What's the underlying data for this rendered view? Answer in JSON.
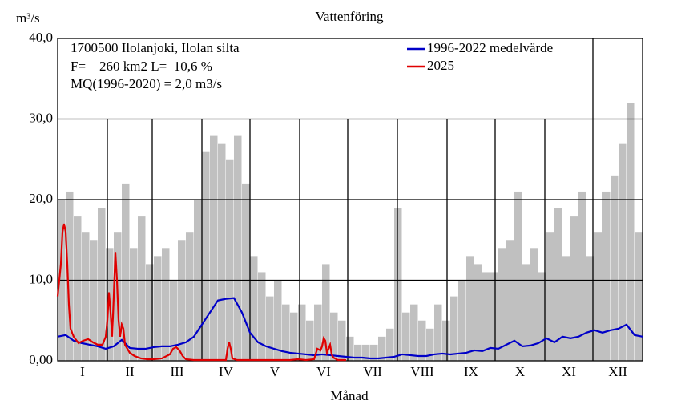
{
  "chart_data": {
    "type": "line",
    "title": "Vattenföring",
    "ylabel": "m³/s",
    "xlabel": "Månad",
    "annotations": [
      "1700500 Ilolanjoki, Ilolan silta",
      "F=    260 km2 L=  10,6 %",
      "MQ(1996-2020) = 2,0 m3/s"
    ],
    "categories": [
      "I",
      "II",
      "III",
      "IV",
      "V",
      "VI",
      "VII",
      "VIII",
      "IX",
      "X",
      "XI",
      "XII"
    ],
    "xlim": [
      0,
      365
    ],
    "xticks": [
      31,
      59,
      90,
      120,
      151,
      181,
      212,
      243,
      273,
      304,
      334
    ],
    "ylim": [
      0,
      40
    ],
    "yticks": [
      {
        "value": 0,
        "label": "0,00"
      },
      {
        "value": 10,
        "label": "10,0"
      },
      {
        "value": 20,
        "label": "20,0"
      },
      {
        "value": 30,
        "label": "30,0"
      },
      {
        "value": 40,
        "label": "40,0"
      }
    ],
    "grid": true,
    "series": [
      {
        "color": "#c0c0c0",
        "kind": "bar",
        "x": [
          0,
          5,
          10,
          15,
          20,
          25,
          30,
          35,
          40,
          45,
          50,
          55,
          60,
          65,
          70,
          75,
          80,
          85,
          90,
          95,
          100,
          105,
          110,
          115,
          120,
          125,
          130,
          135,
          140,
          145,
          150,
          155,
          160,
          165,
          170,
          175,
          180,
          185,
          190,
          195,
          200,
          205,
          210,
          215,
          220,
          225,
          230,
          235,
          240,
          245,
          250,
          255,
          260,
          265,
          270,
          275,
          280,
          285,
          290,
          295,
          300,
          305,
          310,
          315,
          320,
          325,
          330,
          335,
          340,
          345,
          350,
          355,
          360
        ],
        "values": [
          20,
          21,
          18,
          16,
          15,
          19,
          14,
          16,
          22,
          14,
          18,
          12,
          13,
          14,
          10,
          15,
          16,
          20,
          26,
          28,
          27,
          25,
          28,
          22,
          13,
          11,
          8,
          10,
          7,
          6,
          7,
          5,
          7,
          12,
          6,
          5,
          3,
          2,
          2,
          2,
          3,
          4,
          19,
          6,
          7,
          5,
          4,
          7,
          5,
          8,
          10,
          13,
          12,
          11,
          11,
          14,
          15,
          21,
          12,
          14,
          11,
          16,
          19,
          13,
          18,
          21,
          13,
          16,
          21,
          23,
          27,
          32,
          16
        ]
      },
      {
        "name": "1996-2022 medelvärde",
        "color": "#0000c8",
        "x": [
          0,
          5,
          10,
          15,
          20,
          25,
          30,
          35,
          40,
          45,
          50,
          55,
          60,
          65,
          70,
          75,
          80,
          85,
          90,
          95,
          100,
          105,
          110,
          115,
          120,
          125,
          130,
          135,
          140,
          145,
          150,
          155,
          160,
          165,
          170,
          175,
          180,
          185,
          190,
          195,
          200,
          205,
          210,
          215,
          220,
          225,
          230,
          235,
          240,
          245,
          250,
          255,
          260,
          265,
          270,
          275,
          280,
          285,
          290,
          295,
          300,
          305,
          310,
          315,
          320,
          325,
          330,
          335,
          340,
          345,
          350,
          355,
          360,
          365
        ],
        "values": [
          3,
          3.2,
          2.5,
          2.2,
          2,
          1.8,
          1.5,
          1.8,
          2.6,
          1.6,
          1.5,
          1.5,
          1.7,
          1.8,
          1.8,
          2,
          2.3,
          3,
          4.5,
          6,
          7.5,
          7.7,
          7.8,
          6,
          3.5,
          2.3,
          1.8,
          1.5,
          1.2,
          1,
          0.9,
          0.8,
          0.7,
          0.8,
          0.7,
          0.6,
          0.5,
          0.4,
          0.4,
          0.3,
          0.3,
          0.4,
          0.5,
          0.8,
          0.7,
          0.6,
          0.6,
          0.8,
          0.9,
          0.8,
          0.9,
          1,
          1.3,
          1.2,
          1.6,
          1.5,
          2,
          2.5,
          1.8,
          1.9,
          2.2,
          2.8,
          2.3,
          3,
          2.8,
          3,
          3.5,
          3.8,
          3.5,
          3.8,
          4,
          4.5,
          3.2,
          3
        ]
      },
      {
        "name": "2025",
        "color": "#e00000",
        "x": [
          0,
          2,
          3,
          4,
          5,
          6,
          7,
          8,
          10,
          13,
          16,
          19,
          22,
          25,
          28,
          30,
          31,
          32,
          33,
          34,
          35,
          36,
          37,
          38,
          39,
          40,
          41,
          42,
          45,
          48,
          52,
          56,
          60,
          65,
          70,
          72,
          74,
          76,
          78,
          80,
          85,
          95,
          100,
          105,
          106,
          107,
          108,
          109,
          112,
          130,
          145,
          150,
          155,
          160,
          162,
          164,
          165,
          166,
          167,
          168,
          169,
          170,
          171,
          172,
          175,
          180
        ],
        "values": [
          8,
          12,
          16,
          17,
          16,
          12,
          7,
          4,
          3,
          2.2,
          2.5,
          2.7,
          2.3,
          2,
          2,
          3,
          5,
          8.5,
          6,
          3,
          8,
          13.5,
          10,
          5,
          3,
          4.5,
          4,
          2,
          1,
          0.6,
          0.3,
          0.2,
          0.2,
          0.3,
          0.8,
          1.5,
          1.7,
          1.3,
          0.6,
          0.2,
          0.1,
          0.1,
          0.1,
          0.1,
          1.5,
          2.3,
          1.5,
          0.3,
          0.1,
          0.1,
          0.1,
          0.2,
          0.1,
          0.2,
          1.5,
          1.3,
          1.8,
          2.8,
          2.5,
          1,
          1.5,
          2,
          0.8,
          0.4,
          0.1,
          0.1
        ]
      }
    ]
  }
}
